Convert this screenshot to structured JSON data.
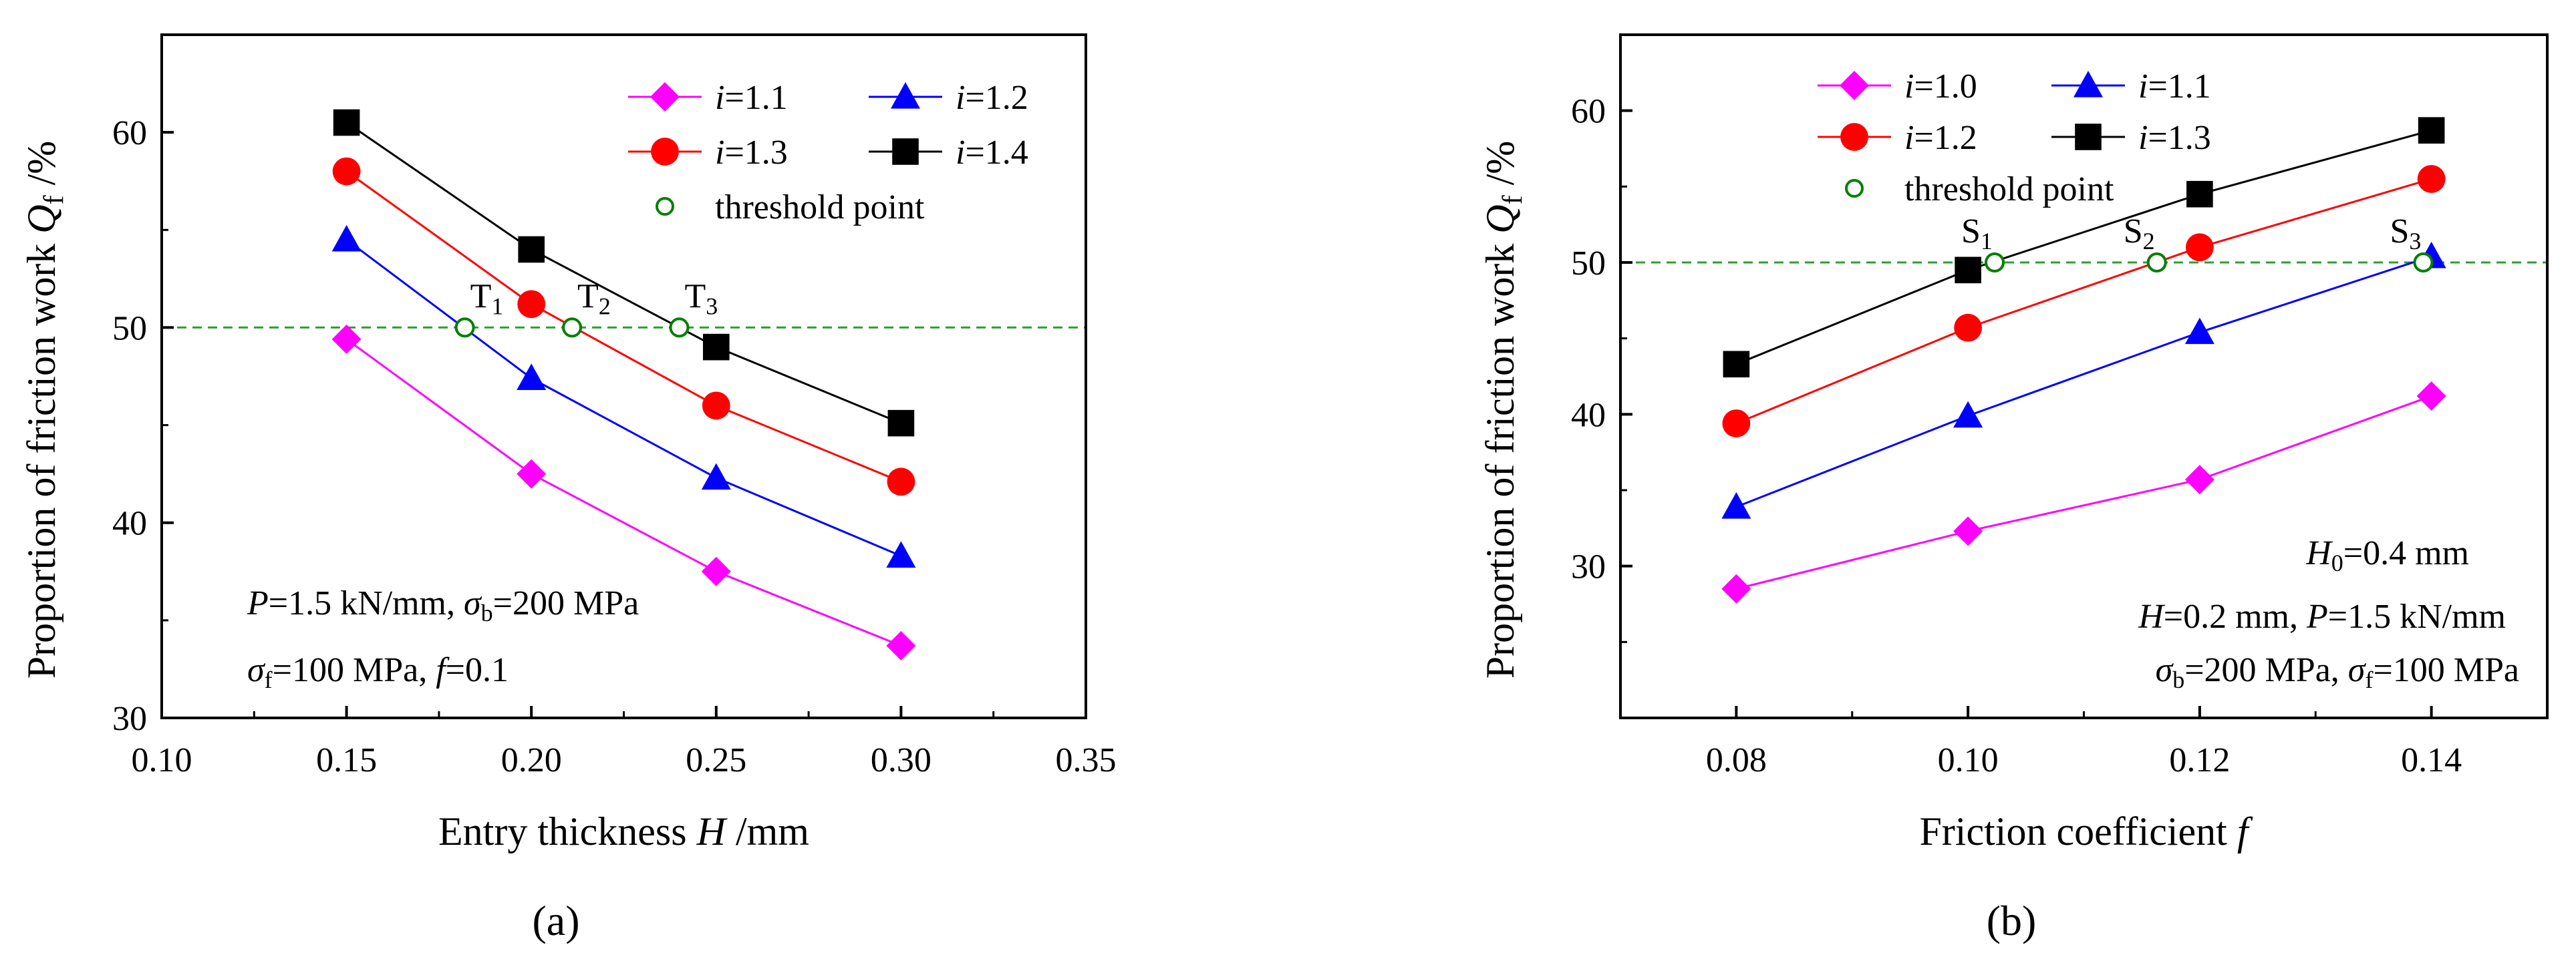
{
  "chart_data": [
    {
      "id": "a",
      "type": "line",
      "caption": "(a)",
      "xlabel": "Entry thickness H /mm",
      "ylabel": "Proportion of friction work Q_f /%",
      "xlim": [
        0.1,
        0.35
      ],
      "ylim": [
        30,
        65
      ],
      "xticks": [
        0.1,
        0.15,
        0.2,
        0.25,
        0.3,
        0.35
      ],
      "xtick_labels": [
        "0.10",
        "0.15",
        "0.20",
        "0.25",
        "0.30",
        "0.35"
      ],
      "yticks": [
        30,
        40,
        50,
        60
      ],
      "ytick_labels": [
        "30",
        "40",
        "50",
        "60"
      ],
      "threshold": 50,
      "x": [
        0.15,
        0.2,
        0.25,
        0.3
      ],
      "series": [
        {
          "name": "i=1.1",
          "prefix": "i",
          "rest": "=1.1",
          "color": "#ff00ff",
          "marker": "diamond",
          "values": [
            49.4,
            42.5,
            37.5,
            33.7
          ]
        },
        {
          "name": "i=1.2",
          "prefix": "i",
          "rest": "=1.2",
          "color": "#0000ff",
          "marker": "triangle",
          "values": [
            54.5,
            47.4,
            42.3,
            38.3
          ]
        },
        {
          "name": "i=1.3",
          "prefix": "i",
          "rest": "=1.3",
          "color": "#ff0000",
          "marker": "circle",
          "values": [
            58.0,
            51.2,
            46.0,
            42.1
          ]
        },
        {
          "name": "i=1.4",
          "prefix": "i",
          "rest": "=1.4",
          "color": "#000000",
          "marker": "square",
          "values": [
            60.5,
            54.0,
            49.0,
            45.1
          ]
        }
      ],
      "threshold_points": [
        {
          "label": "T",
          "sub": "1",
          "x": 0.182,
          "y": 50
        },
        {
          "label": "T",
          "sub": "2",
          "x": 0.211,
          "y": 50
        },
        {
          "label": "T",
          "sub": "3",
          "x": 0.24,
          "y": 50
        }
      ],
      "threshold_legend": "threshold point",
      "annotation": {
        "line1": {
          "P": "P",
          "eq": "=1.5 kN/mm,",
          "sigma": "σ",
          "sigma_sub": "b",
          "sigma_val": "=200 MPa"
        },
        "line2": {
          "sigma": "σ",
          "sigma_sub": "f",
          "sigma_val": "=100 MPa,",
          "f": "f",
          "f_val": "=0.1"
        }
      }
    },
    {
      "id": "b",
      "type": "line",
      "caption": "(b)",
      "xlabel": "Friction coefficient f",
      "ylabel": "Proportion of friction work Q_f /%",
      "xlim": [
        0.07,
        0.15
      ],
      "ylim": [
        20,
        65
      ],
      "xticks": [
        0.08,
        0.1,
        0.12,
        0.14
      ],
      "xtick_labels": [
        "0.08",
        "0.10",
        "0.12",
        "0.14"
      ],
      "yticks": [
        30,
        40,
        50,
        60
      ],
      "ytick_labels": [
        "30",
        "40",
        "50",
        "60"
      ],
      "threshold": 50,
      "x": [
        0.08,
        0.1,
        0.12,
        0.14
      ],
      "series": [
        {
          "name": "i=1.0",
          "prefix": "i",
          "rest": "=1.0",
          "color": "#ff00ff",
          "marker": "diamond",
          "values": [
            28.5,
            32.3,
            35.7,
            41.2
          ]
        },
        {
          "name": "i=1.1",
          "prefix": "i",
          "rest": "=1.1",
          "color": "#0000ff",
          "marker": "triangle",
          "values": [
            33.9,
            39.9,
            45.4,
            50.4
          ]
        },
        {
          "name": "i=1.2",
          "prefix": "i",
          "rest": "=1.2",
          "color": "#ff0000",
          "marker": "circle",
          "values": [
            39.4,
            45.7,
            51.0,
            55.5
          ]
        },
        {
          "name": "i=1.3",
          "prefix": "i",
          "rest": "=1.3",
          "color": "#000000",
          "marker": "square",
          "values": [
            43.3,
            49.5,
            54.5,
            58.7
          ]
        }
      ],
      "threshold_points": [
        {
          "label": "S",
          "sub": "1",
          "x": 0.1023,
          "y": 50
        },
        {
          "label": "S",
          "sub": "2",
          "x": 0.1163,
          "y": 50
        },
        {
          "label": "S",
          "sub": "3",
          "x": 0.1393,
          "y": 50
        }
      ],
      "threshold_legend": "threshold point",
      "annotation": {
        "line1": {
          "H0": "H",
          "H0_sub": "0",
          "H0_val": "=0.4 mm"
        },
        "line2": {
          "H": "H",
          "H_val": "=0.2 mm,",
          "P": "P",
          "P_val": "=1.5 kN/mm"
        },
        "line3": {
          "sigma_b": "σ",
          "sigma_b_sub": "b",
          "sigma_b_val": "=200 MPa,",
          "sigma_f": "σ",
          "sigma_f_sub": "f",
          "sigma_f_val": "=100 MPa"
        }
      }
    }
  ],
  "ylabel_parts": {
    "text": "Proportion of friction work ",
    "Q": "Q",
    "Q_sub": "f",
    "unit": " /%"
  },
  "xlabel_parts": {
    "a": {
      "text": "Entry thickness ",
      "var": "H",
      "unit": " /mm"
    },
    "b": {
      "text": "Friction coefficient ",
      "var": "f",
      "unit": ""
    }
  },
  "colors": {
    "threshold_line": "#2ca02c",
    "threshold_marker": "#008000"
  }
}
